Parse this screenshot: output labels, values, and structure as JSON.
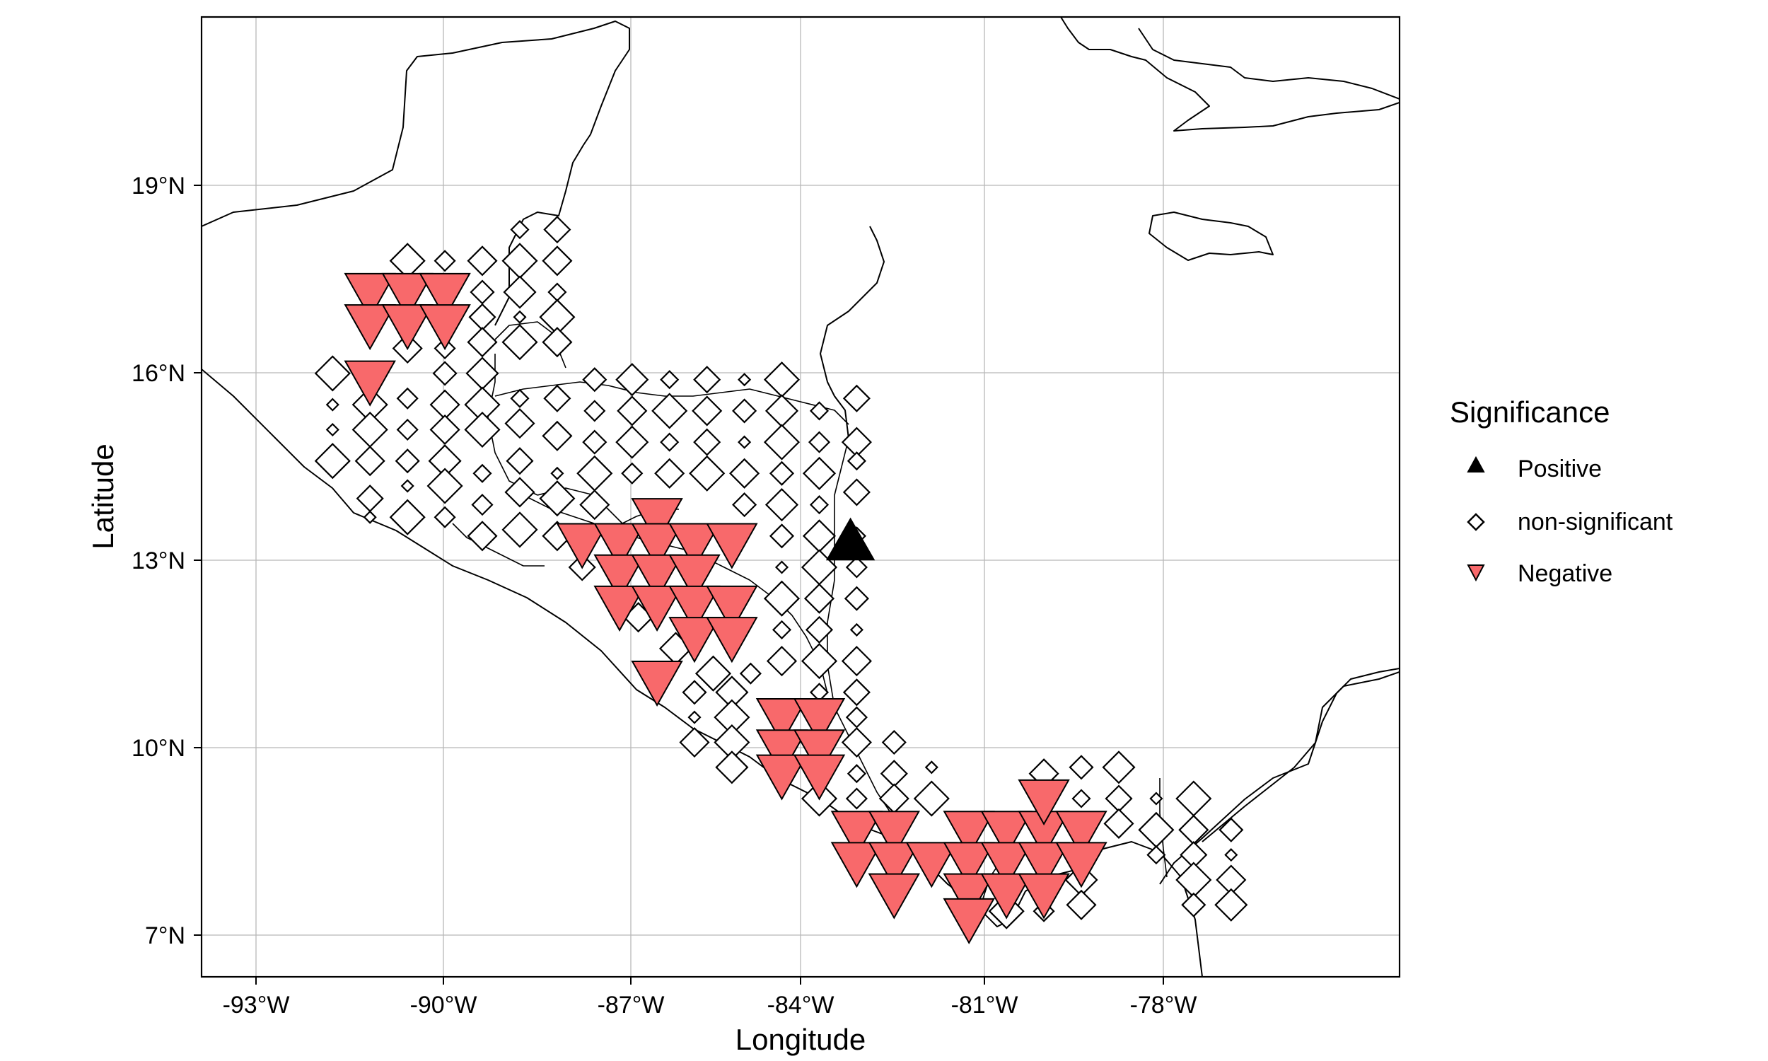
{
  "axes": {
    "xlabel": "Longitude",
    "ylabel": "Latitude",
    "x_ticks": [
      "-93°W",
      "-90°W",
      "-87°W",
      "-84°W",
      "-81°W",
      "-78°W"
    ],
    "y_ticks": [
      "7°N",
      "10°N",
      "13°N",
      "16°N",
      "19°N"
    ]
  },
  "legend": {
    "title": "Significance",
    "items": [
      {
        "label": "Positive",
        "shape": "triangle-up",
        "color": "#000000"
      },
      {
        "label": "non-significant",
        "shape": "diamond-open",
        "color": "#000000"
      },
      {
        "label": "Negative",
        "shape": "triangle-down",
        "color": "#f8696b"
      }
    ]
  },
  "chart_data": {
    "type": "scatter",
    "map": "Central America",
    "xlim": [
      -93.9,
      -74.7
    ],
    "ylim": [
      6.35,
      21.7
    ],
    "x_ticks": [
      -93,
      -90,
      -87,
      -84,
      -81,
      -78
    ],
    "y_ticks": [
      7,
      10,
      13,
      16,
      19
    ],
    "grid": true,
    "legend_position": "right",
    "colors": {
      "positive": "#000000",
      "negative": "#f8696b",
      "nonsignificant": "#ffffff"
    },
    "positive": [
      [
        -83.5,
        13.3
      ]
    ],
    "negative": [
      [
        -91.2,
        17.3
      ],
      [
        -90.6,
        17.3
      ],
      [
        -90.0,
        17.3
      ],
      [
        -91.2,
        16.8
      ],
      [
        -90.6,
        16.8
      ],
      [
        -90.0,
        16.8
      ],
      [
        -91.2,
        15.9
      ],
      [
        -86.6,
        13.7
      ],
      [
        -87.8,
        13.3
      ],
      [
        -87.2,
        13.3
      ],
      [
        -86.6,
        13.3
      ],
      [
        -86.0,
        13.3
      ],
      [
        -85.4,
        13.3
      ],
      [
        -87.2,
        12.8
      ],
      [
        -86.6,
        12.8
      ],
      [
        -86.0,
        12.8
      ],
      [
        -87.2,
        12.3
      ],
      [
        -86.6,
        12.3
      ],
      [
        -86.0,
        12.3
      ],
      [
        -85.4,
        12.3
      ],
      [
        -86.0,
        11.8
      ],
      [
        -85.4,
        11.8
      ],
      [
        -86.6,
        11.1
      ],
      [
        -84.6,
        10.5
      ],
      [
        -84.0,
        10.5
      ],
      [
        -84.6,
        10.0
      ],
      [
        -84.0,
        10.0
      ],
      [
        -84.6,
        9.6
      ],
      [
        -84.0,
        9.6
      ],
      [
        -83.4,
        8.7
      ],
      [
        -82.8,
        8.7
      ],
      [
        -81.6,
        8.7
      ],
      [
        -81.0,
        8.7
      ],
      [
        -80.4,
        8.7
      ],
      [
        -79.8,
        8.7
      ],
      [
        -80.4,
        9.2
      ],
      [
        -83.4,
        8.2
      ],
      [
        -82.8,
        8.2
      ],
      [
        -82.2,
        8.2
      ],
      [
        -81.6,
        8.2
      ],
      [
        -81.0,
        8.2
      ],
      [
        -80.4,
        8.2
      ],
      [
        -79.8,
        8.2
      ],
      [
        -82.8,
        7.7
      ],
      [
        -81.6,
        7.7
      ],
      [
        -81.0,
        7.7
      ],
      [
        -80.4,
        7.7
      ],
      [
        -81.6,
        7.3
      ]
    ],
    "nonsignificant": [
      [
        -91.8,
        16.0
      ],
      [
        -90.6,
        16.4
      ],
      [
        -90.0,
        16.0
      ],
      [
        -89.4,
        16.0
      ],
      [
        -88.8,
        15.6
      ],
      [
        -88.2,
        15.6
      ],
      [
        -91.8,
        15.5
      ],
      [
        -91.2,
        15.5
      ],
      [
        -90.6,
        15.6
      ],
      [
        -90.0,
        15.5
      ],
      [
        -89.4,
        15.5
      ],
      [
        -88.8,
        15.2
      ],
      [
        -87.6,
        15.9
      ],
      [
        -87.0,
        15.9
      ],
      [
        -86.4,
        15.9
      ],
      [
        -85.8,
        15.9
      ],
      [
        -85.2,
        15.9
      ],
      [
        -84.6,
        15.9
      ],
      [
        -87.6,
        15.4
      ],
      [
        -87.0,
        15.4
      ],
      [
        -86.4,
        15.4
      ],
      [
        -85.8,
        15.4
      ],
      [
        -85.2,
        15.4
      ],
      [
        -84.6,
        15.4
      ],
      [
        -84.0,
        15.4
      ],
      [
        -83.4,
        15.6
      ],
      [
        -91.8,
        15.1
      ],
      [
        -91.2,
        15.1
      ],
      [
        -90.6,
        15.1
      ],
      [
        -90.0,
        15.1
      ],
      [
        -89.4,
        15.1
      ],
      [
        -88.2,
        15.0
      ],
      [
        -87.6,
        14.9
      ],
      [
        -87.0,
        14.9
      ],
      [
        -86.4,
        14.9
      ],
      [
        -85.8,
        14.9
      ],
      [
        -85.2,
        14.9
      ],
      [
        -84.6,
        14.9
      ],
      [
        -84.0,
        14.9
      ],
      [
        -83.4,
        14.9
      ],
      [
        -91.8,
        14.6
      ],
      [
        -91.2,
        14.6
      ],
      [
        -90.6,
        14.6
      ],
      [
        -90.0,
        14.6
      ],
      [
        -89.4,
        14.4
      ],
      [
        -88.8,
        14.6
      ],
      [
        -88.2,
        14.4
      ],
      [
        -87.6,
        14.4
      ],
      [
        -87.0,
        14.4
      ],
      [
        -86.4,
        14.4
      ],
      [
        -85.8,
        14.4
      ],
      [
        -85.2,
        14.4
      ],
      [
        -84.6,
        14.4
      ],
      [
        -84.0,
        14.4
      ],
      [
        -83.4,
        14.6
      ],
      [
        -91.2,
        14.0
      ],
      [
        -90.6,
        14.2
      ],
      [
        -90.0,
        14.2
      ],
      [
        -89.4,
        13.9
      ],
      [
        -88.8,
        14.1
      ],
      [
        -88.2,
        14.0
      ],
      [
        -87.6,
        13.9
      ],
      [
        -85.2,
        13.9
      ],
      [
        -84.6,
        13.9
      ],
      [
        -84.0,
        13.9
      ],
      [
        -83.4,
        14.1
      ],
      [
        -91.2,
        13.7
      ],
      [
        -90.6,
        13.7
      ],
      [
        -90.0,
        13.7
      ],
      [
        -89.4,
        13.4
      ],
      [
        -88.8,
        13.5
      ],
      [
        -88.2,
        13.4
      ],
      [
        -84.6,
        13.4
      ],
      [
        -84.0,
        13.4
      ],
      [
        -83.4,
        13.4
      ],
      [
        -87.8,
        12.9
      ],
      [
        -84.6,
        12.9
      ],
      [
        -84.0,
        12.9
      ],
      [
        -83.4,
        12.9
      ],
      [
        -86.9,
        12.1
      ],
      [
        -84.6,
        12.4
      ],
      [
        -84.0,
        12.4
      ],
      [
        -83.4,
        12.4
      ],
      [
        -86.3,
        11.6
      ],
      [
        -84.6,
        11.9
      ],
      [
        -84.0,
        11.9
      ],
      [
        -83.4,
        11.9
      ],
      [
        -85.7,
        11.2
      ],
      [
        -85.1,
        11.2
      ],
      [
        -84.6,
        11.4
      ],
      [
        -84.0,
        11.4
      ],
      [
        -83.4,
        11.4
      ],
      [
        -86.0,
        10.9
      ],
      [
        -85.4,
        10.9
      ],
      [
        -84.0,
        10.9
      ],
      [
        -83.4,
        10.9
      ],
      [
        -86.0,
        10.5
      ],
      [
        -85.4,
        10.5
      ],
      [
        -83.4,
        10.5
      ],
      [
        -86.0,
        10.1
      ],
      [
        -85.4,
        10.1
      ],
      [
        -83.4,
        10.1
      ],
      [
        -82.8,
        10.1
      ],
      [
        -85.4,
        9.7
      ],
      [
        -83.4,
        9.6
      ],
      [
        -82.8,
        9.6
      ],
      [
        -82.2,
        9.7
      ],
      [
        -84.0,
        9.2
      ],
      [
        -83.4,
        9.2
      ],
      [
        -82.8,
        9.2
      ],
      [
        -82.2,
        9.2
      ],
      [
        -80.4,
        9.6
      ],
      [
        -79.8,
        9.7
      ],
      [
        -79.2,
        9.7
      ],
      [
        -79.8,
        9.2
      ],
      [
        -79.2,
        9.2
      ],
      [
        -78.6,
        9.2
      ],
      [
        -78.0,
        9.2
      ],
      [
        -79.8,
        8.8
      ],
      [
        -79.2,
        8.8
      ],
      [
        -78.6,
        8.7
      ],
      [
        -78.0,
        8.7
      ],
      [
        -77.4,
        8.7
      ],
      [
        -79.8,
        7.9
      ],
      [
        -78.6,
        8.3
      ],
      [
        -78.0,
        8.3
      ],
      [
        -77.4,
        8.3
      ],
      [
        -81.0,
        7.4
      ],
      [
        -80.4,
        7.4
      ],
      [
        -79.8,
        7.5
      ],
      [
        -78.0,
        7.9
      ],
      [
        -77.4,
        7.9
      ],
      [
        -78.0,
        7.5
      ],
      [
        -77.4,
        7.5
      ],
      [
        -88.8,
        18.3
      ],
      [
        -88.2,
        18.3
      ],
      [
        -88.2,
        17.9
      ],
      [
        -90.6,
        17.8
      ],
      [
        -90.0,
        17.8
      ],
      [
        -89.4,
        17.8
      ],
      [
        -88.8,
        17.8
      ],
      [
        -88.2,
        17.8
      ],
      [
        -89.4,
        17.3
      ],
      [
        -88.8,
        17.3
      ],
      [
        -88.2,
        17.3
      ],
      [
        -89.4,
        16.9
      ],
      [
        -88.8,
        16.9
      ],
      [
        -88.2,
        16.9
      ],
      [
        -90.0,
        16.4
      ],
      [
        -89.4,
        16.5
      ],
      [
        -88.8,
        16.5
      ],
      [
        -88.2,
        16.5
      ]
    ]
  }
}
